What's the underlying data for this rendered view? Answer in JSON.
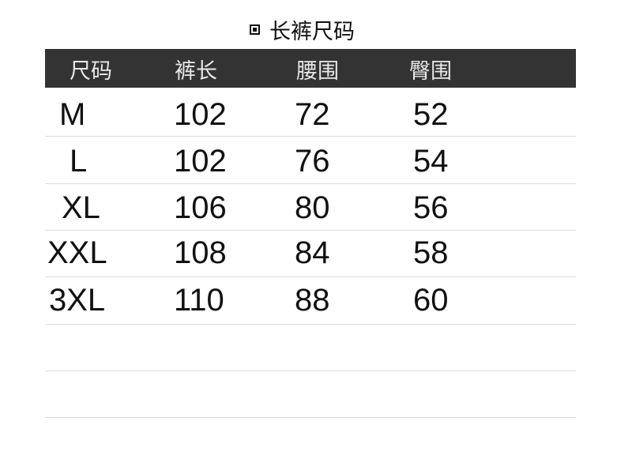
{
  "title": "长裤尺码",
  "title_icon": "square-bullet-icon",
  "colors": {
    "header_bg": "#333333",
    "header_text": "#e8e8e8",
    "text": "#111111"
  },
  "table": {
    "headers": [
      "尺码",
      "裤长",
      "腰围",
      "臀围"
    ],
    "rows": [
      [
        "M",
        "102",
        "72",
        "52"
      ],
      [
        "L",
        "102",
        "76",
        "54"
      ],
      [
        "XL",
        "106",
        "80",
        "56"
      ],
      [
        "XXL",
        "108",
        "84",
        "58"
      ],
      [
        "3XL",
        "110",
        "88",
        "60"
      ]
    ]
  }
}
